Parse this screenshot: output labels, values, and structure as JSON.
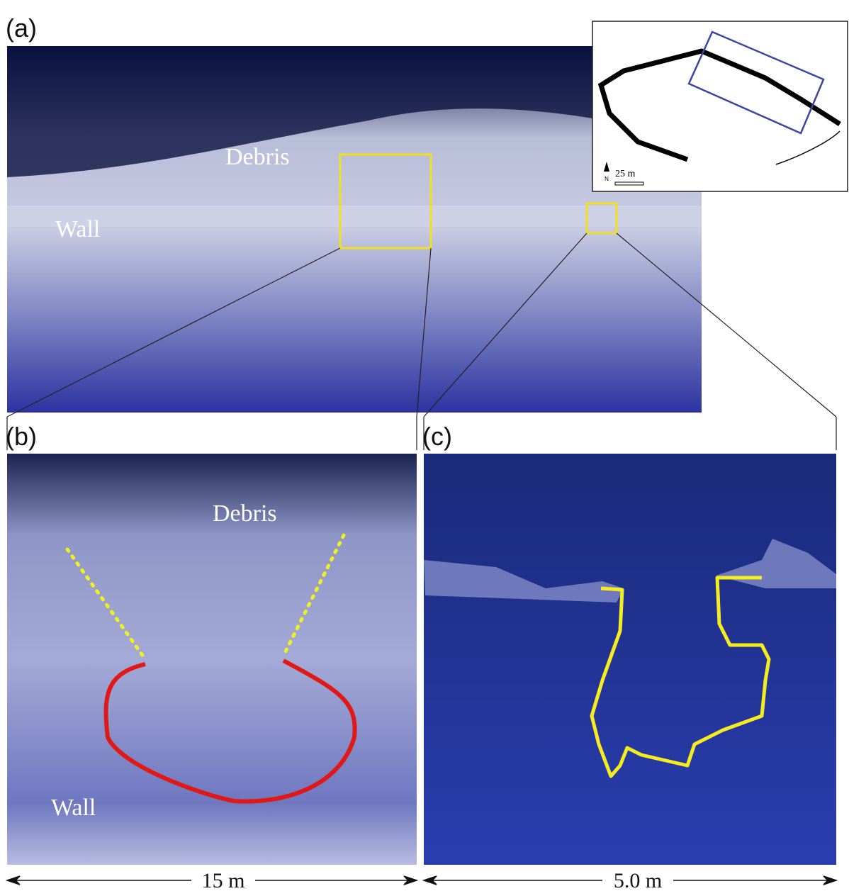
{
  "panel_a": {
    "label": "(a)",
    "annotations": [
      "Debris",
      "Wall"
    ],
    "inset": {
      "north": "N",
      "scale": "25 m"
    }
  },
  "panel_b": {
    "label": "(b)",
    "annotations": [
      "Debris",
      "Wall"
    ],
    "scale": "15 m"
  },
  "panel_c": {
    "label": "(c)",
    "scale": "5.0 m"
  }
}
